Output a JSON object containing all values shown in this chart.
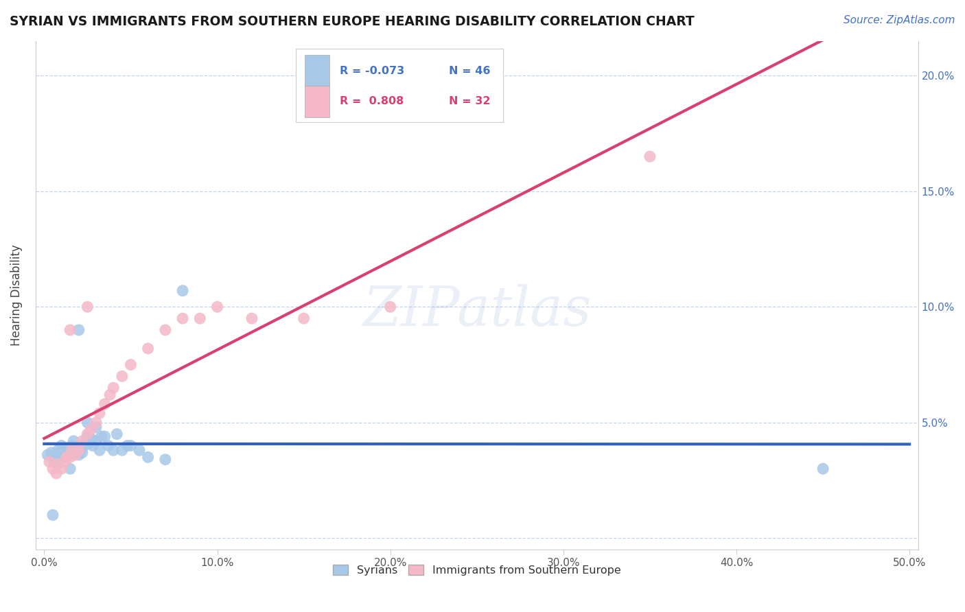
{
  "title": "SYRIAN VS IMMIGRANTS FROM SOUTHERN EUROPE HEARING DISABILITY CORRELATION CHART",
  "source": "Source: ZipAtlas.com",
  "ylabel": "Hearing Disability",
  "xlim": [
    -0.005,
    0.505
  ],
  "ylim": [
    -0.005,
    0.215
  ],
  "xticks": [
    0.0,
    0.1,
    0.2,
    0.3,
    0.4,
    0.5
  ],
  "yticks": [
    0.0,
    0.05,
    0.1,
    0.15,
    0.2
  ],
  "ytick_labels_right": [
    "",
    "5.0%",
    "10.0%",
    "15.0%",
    "20.0%"
  ],
  "xtick_labels": [
    "0.0%",
    "10.0%",
    "20.0%",
    "30.0%",
    "40.0%",
    "50.0%"
  ],
  "watermark_text": "ZIPatlas",
  "color_syrians": "#a8c8e8",
  "color_immigrants": "#f4b8c8",
  "color_line_syrians": "#3060c0",
  "color_line_immigrants": "#d84070",
  "color_blue_text": "#4472C4",
  "color_pink_text": "#d84070",
  "syrians_x": [
    0.002,
    0.004,
    0.005,
    0.006,
    0.007,
    0.008,
    0.009,
    0.01,
    0.011,
    0.012,
    0.013,
    0.014,
    0.015,
    0.016,
    0.017,
    0.018,
    0.019,
    0.02,
    0.021,
    0.022,
    0.023,
    0.024,
    0.025,
    0.026,
    0.027,
    0.028,
    0.03,
    0.032,
    0.033,
    0.035,
    0.037,
    0.04,
    0.042,
    0.045,
    0.048,
    0.05,
    0.055,
    0.06,
    0.07,
    0.08,
    0.02,
    0.025,
    0.03,
    0.015,
    0.45,
    0.005
  ],
  "syrians_y": [
    0.036,
    0.037,
    0.035,
    0.033,
    0.036,
    0.038,
    0.037,
    0.04,
    0.036,
    0.035,
    0.038,
    0.039,
    0.037,
    0.04,
    0.042,
    0.038,
    0.037,
    0.036,
    0.038,
    0.037,
    0.04,
    0.042,
    0.044,
    0.041,
    0.043,
    0.04,
    0.042,
    0.038,
    0.044,
    0.044,
    0.04,
    0.038,
    0.045,
    0.038,
    0.04,
    0.04,
    0.038,
    0.035,
    0.034,
    0.107,
    0.09,
    0.05,
    0.048,
    0.03,
    0.03,
    0.01
  ],
  "immigrants_x": [
    0.003,
    0.005,
    0.007,
    0.008,
    0.01,
    0.012,
    0.013,
    0.015,
    0.016,
    0.018,
    0.02,
    0.022,
    0.025,
    0.027,
    0.03,
    0.032,
    0.035,
    0.038,
    0.04,
    0.045,
    0.05,
    0.06,
    0.07,
    0.08,
    0.09,
    0.1,
    0.12,
    0.15,
    0.2,
    0.35,
    0.015,
    0.025
  ],
  "immigrants_y": [
    0.033,
    0.03,
    0.028,
    0.032,
    0.03,
    0.033,
    0.035,
    0.035,
    0.038,
    0.036,
    0.038,
    0.042,
    0.045,
    0.047,
    0.05,
    0.054,
    0.058,
    0.062,
    0.065,
    0.07,
    0.075,
    0.082,
    0.09,
    0.095,
    0.095,
    0.1,
    0.095,
    0.095,
    0.1,
    0.165,
    0.09,
    0.1
  ],
  "trendline_x_start": 0.0,
  "trendline_x_end": 0.5,
  "syrians_trend_slope": -0.012,
  "syrians_trend_intercept": 0.037,
  "immigrants_trend_slope": 0.33,
  "immigrants_trend_intercept": 0.02
}
